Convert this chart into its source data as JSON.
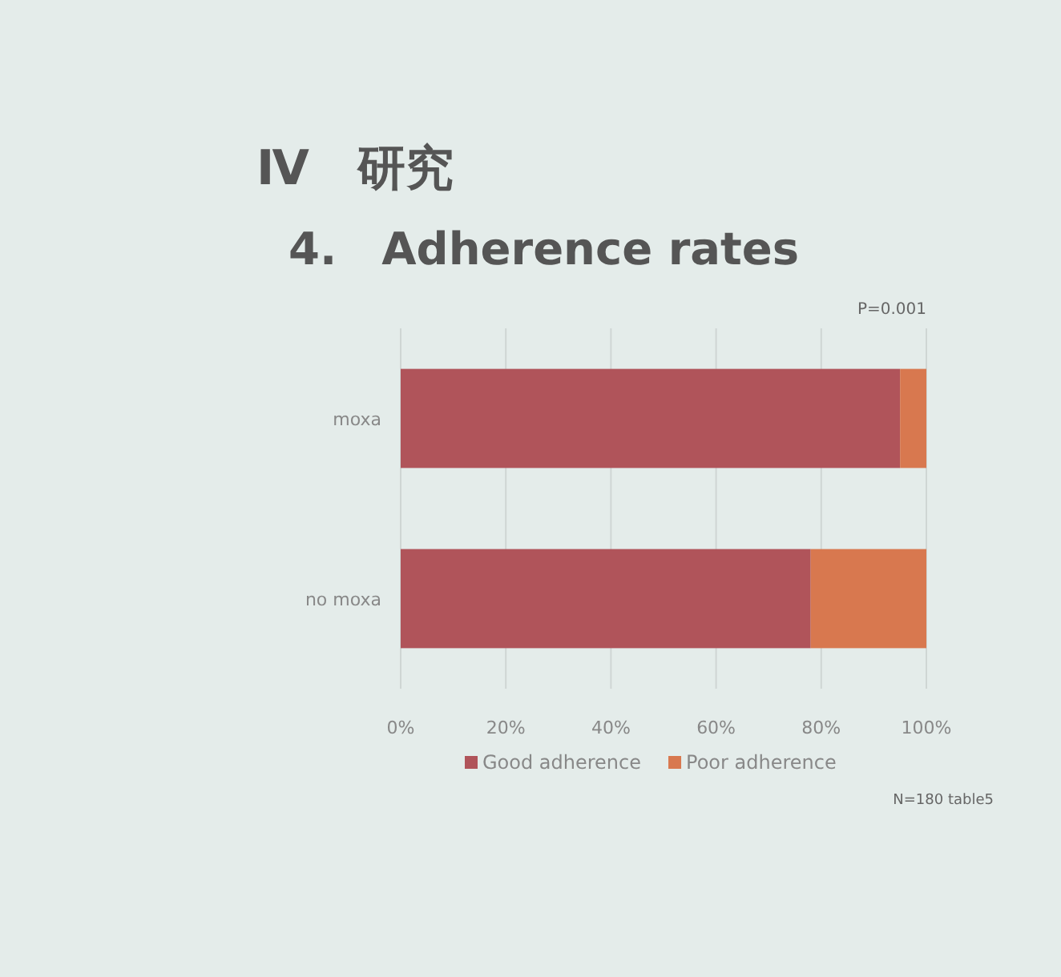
{
  "chart_data": {
    "type": "bar",
    "title": "Ⅳ　研究",
    "subtitle": "4.　Adherence rates",
    "categories": [
      "moxa",
      "no moxa"
    ],
    "series": [
      {
        "name": "Good adherence",
        "color": "#b0545a",
        "values": [
          95,
          78
        ]
      },
      {
        "name": "Poor adherence",
        "color": "#d8784f",
        "values": [
          5,
          22
        ]
      }
    ],
    "stacked": true,
    "orientation": "horizontal",
    "xlim": [
      0,
      100
    ],
    "xticks": [
      {
        "value": 0,
        "label": "0%"
      },
      {
        "value": 20,
        "label": "20%"
      },
      {
        "value": 40,
        "label": "40%"
      },
      {
        "value": 60,
        "label": "60%"
      },
      {
        "value": 80,
        "label": "80%"
      },
      {
        "value": 100,
        "label": "100%"
      }
    ],
    "grid": "x",
    "legend": "bottom",
    "annotations": [
      "P=0.001",
      "N=180 table5"
    ]
  }
}
